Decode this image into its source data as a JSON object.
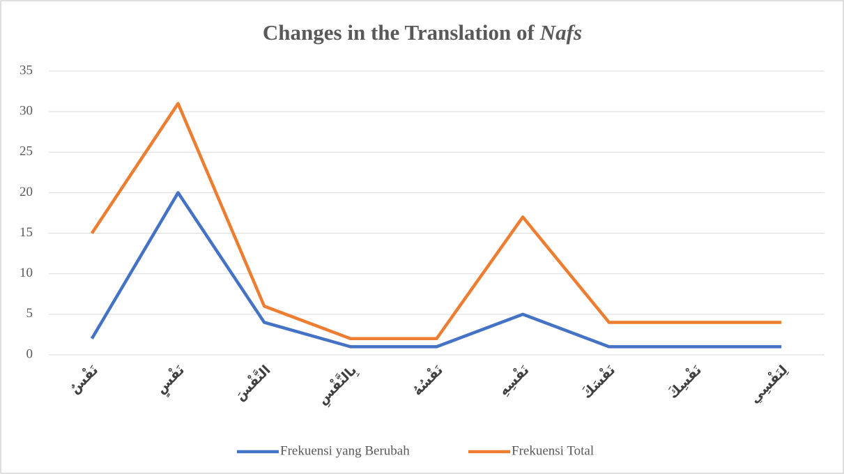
{
  "chart_data": {
    "type": "line",
    "title": {
      "text": "Changes in the Translation of",
      "emphasis": "Nafs"
    },
    "categories": [
      "نَفْسٌ",
      "نَفْسٍ",
      "النَّفْسَ",
      "بِالنَّفْسِ",
      "نَفْسُهُ",
      "نَفْسِهِ",
      "نَفْسَكَ",
      "نَفْسِكَ",
      "لِنَفْسِي"
    ],
    "series": [
      {
        "name": "Frekuensi yang Berubah",
        "color": "#4472c4",
        "values": [
          2,
          20,
          4,
          1,
          1,
          5,
          1,
          1,
          1
        ]
      },
      {
        "name": "Frekuensi Total",
        "color": "#ed7d31",
        "values": [
          15,
          31,
          6,
          2,
          2,
          17,
          4,
          4,
          4
        ]
      }
    ],
    "ylim": [
      0,
      35
    ],
    "yticks": [
      0,
      5,
      10,
      15,
      20,
      25,
      30,
      35
    ],
    "grid": true,
    "legend": "bottom"
  }
}
